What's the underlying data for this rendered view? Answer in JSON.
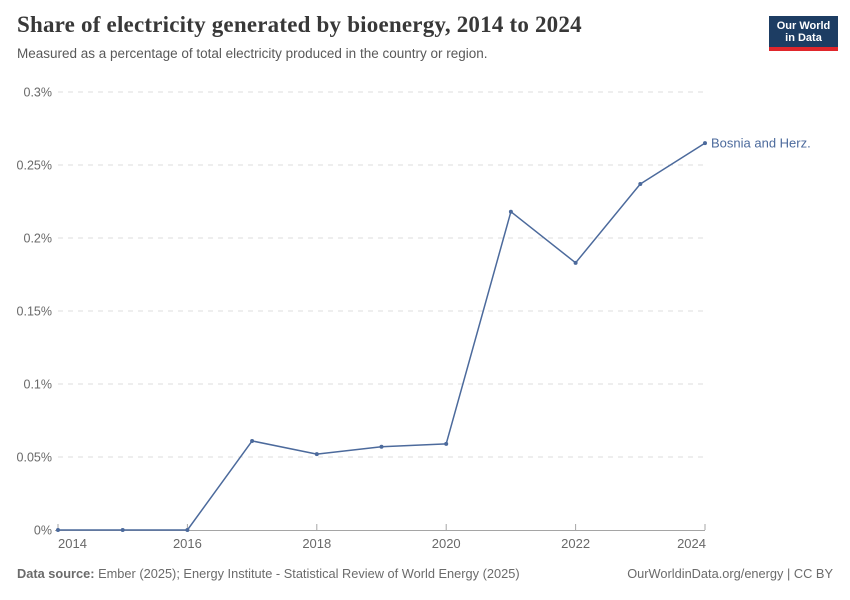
{
  "header": {
    "title": "Share of electricity generated by bioenergy, 2014 to 2024",
    "subtitle": "Measured as a percentage of total electricity produced in the country or region.",
    "logo": {
      "line1": "Our World",
      "line2": "in Data",
      "bg_color": "#1d3d63",
      "accent_color": "#e0262b"
    }
  },
  "chart_data": {
    "type": "line",
    "title": "Share of electricity generated by bioenergy, 2014 to 2024",
    "x": [
      2014,
      2015,
      2016,
      2017,
      2018,
      2019,
      2020,
      2021,
      2022,
      2023,
      2024
    ],
    "series": [
      {
        "name": "Bosnia and Herz.",
        "color": "#4c6a9c",
        "values": [
          0,
          0,
          0,
          0.061,
          0.052,
          0.057,
          0.059,
          0.218,
          0.183,
          0.237,
          0.265
        ]
      }
    ],
    "unit": "%",
    "xlabel": "",
    "ylabel": "",
    "ylim": [
      0,
      0.3
    ],
    "yticks": [
      {
        "value": 0,
        "label": "0%"
      },
      {
        "value": 0.05,
        "label": "0.05%"
      },
      {
        "value": 0.1,
        "label": "0.1%"
      },
      {
        "value": 0.15,
        "label": "0.15%"
      },
      {
        "value": 0.2,
        "label": "0.2%"
      },
      {
        "value": 0.25,
        "label": "0.25%"
      },
      {
        "value": 0.3,
        "label": "0.3%"
      }
    ],
    "xticks": [
      {
        "value": 2014,
        "label": "2014"
      },
      {
        "value": 2016,
        "label": "2016"
      },
      {
        "value": 2018,
        "label": "2018"
      },
      {
        "value": 2020,
        "label": "2020"
      },
      {
        "value": 2022,
        "label": "2022"
      },
      {
        "value": 2024,
        "label": "2024"
      }
    ],
    "grid": "horizontal-dashed",
    "legend_position": "end-of-line",
    "theme": {
      "grid_color": "#dcdcdc",
      "axis_color": "#a5a5a5",
      "tick_text_color": "#696969"
    }
  },
  "footer": {
    "datasource_label": "Data source:",
    "datasource_text": " Ember (2025); Energy Institute - Statistical Review of World Energy (2025)",
    "credit": "OurWorldinData.org/energy | CC BY"
  }
}
